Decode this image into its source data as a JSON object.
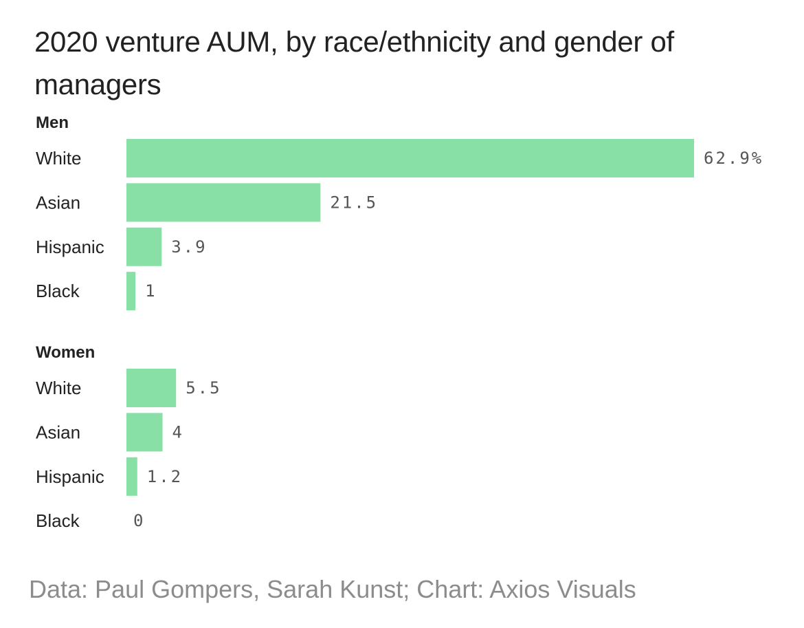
{
  "chart_data": {
    "type": "bar",
    "orientation": "horizontal",
    "title": "2020 venture AUM, by race/ethnicity and gender of managers",
    "groups": [
      {
        "name": "Men",
        "categories": [
          "White",
          "Asian",
          "Hispanic",
          "Black"
        ],
        "values": [
          62.9,
          21.5,
          3.9,
          1
        ],
        "value_labels": [
          "62.9%",
          "21.5",
          "3.9",
          "1"
        ]
      },
      {
        "name": "Women",
        "categories": [
          "White",
          "Asian",
          "Hispanic",
          "Black"
        ],
        "values": [
          5.5,
          4,
          1.2,
          0
        ],
        "value_labels": [
          "5.5",
          "4",
          "1.2",
          "0"
        ]
      }
    ],
    "unit": "%",
    "xlim": [
      0,
      62.9
    ],
    "grid": false,
    "legend": "none",
    "bar_color": "#88e0a6"
  },
  "source": "Data: Paul Gompers, Sarah Kunst; Chart: Axios Visuals"
}
